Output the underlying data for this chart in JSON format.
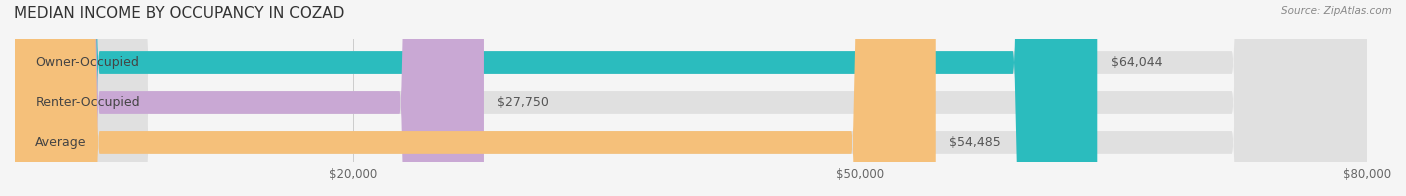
{
  "title": "MEDIAN INCOME BY OCCUPANCY IN COZAD",
  "source": "Source: ZipAtlas.com",
  "categories": [
    "Owner-Occupied",
    "Renter-Occupied",
    "Average"
  ],
  "values": [
    64044,
    27750,
    54485
  ],
  "labels": [
    "$64,044",
    "$27,750",
    "$54,485"
  ],
  "bar_colors": [
    "#2bbcbe",
    "#c9a8d4",
    "#f5c07a"
  ],
  "bar_bg_color": "#e8e8e8",
  "xlim": [
    0,
    80000
  ],
  "xticks": [
    20000,
    50000,
    80000
  ],
  "xtick_labels": [
    "$20,000",
    "$50,000",
    "$80,000"
  ],
  "title_fontsize": 11,
  "label_fontsize": 9,
  "bar_height": 0.55,
  "fig_bg_color": "#f5f5f5"
}
